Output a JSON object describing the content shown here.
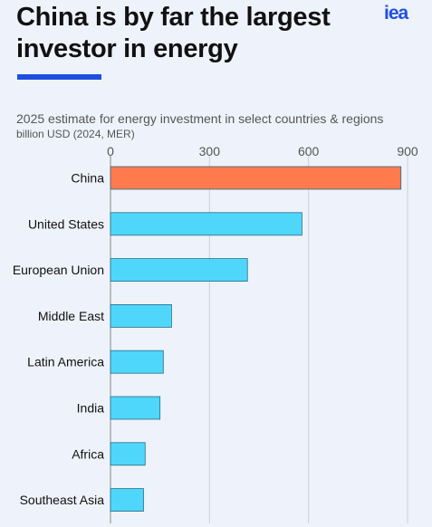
{
  "title": "China is by far the largest investor in energy",
  "logo": "iea",
  "subtitle": "2025 estimate for energy investment in select countries & regions",
  "unit": "billion USD (2024, MER)",
  "colors": {
    "highlight": "#ff7a4d",
    "bar": "#4fd6fb",
    "accent": "#1f4fe0"
  },
  "chart_data": {
    "type": "bar",
    "orientation": "horizontal",
    "categories": [
      "China",
      "United States",
      "European Union",
      "Middle East",
      "Latin America",
      "India",
      "Africa",
      "Southeast Asia"
    ],
    "values": [
      880,
      580,
      415,
      185,
      160,
      150,
      105,
      100
    ],
    "xticks": [
      "0",
      "300",
      "600",
      "900"
    ],
    "xlim": [
      0,
      900
    ],
    "grid": true,
    "highlight": "China"
  }
}
